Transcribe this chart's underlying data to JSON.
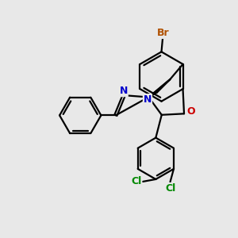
{
  "background_color": "#e8e8e8",
  "bond_color": "#000000",
  "atom_colors": {
    "Br": "#b05000",
    "N": "#0000cc",
    "O": "#cc0000",
    "Cl": "#008800",
    "C": "#000000"
  },
  "figsize": [
    3.0,
    3.0
  ],
  "dpi": 100
}
